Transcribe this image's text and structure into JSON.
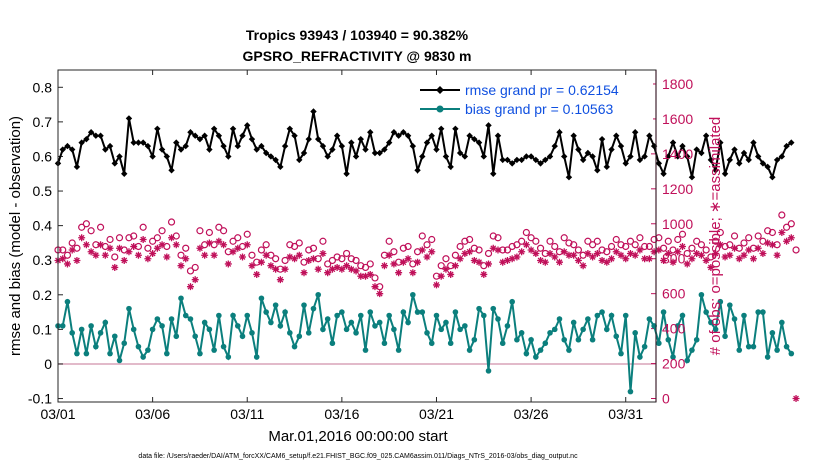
{
  "chart_data": {
    "type": "line",
    "title_line1": "Tropics 93943 / 103940 = 90.382%",
    "title_line2": "GPSRO_REFRACTIVITY @ 9830 m",
    "xlabel": "Mar.01,2016 00:00:00 start",
    "ylabel": "rmse and bias (model - observation)",
    "y2label": "# of obs: o=possible; ∗=assimilated",
    "footnote": "data file: /Users/raeder/DAI/ATM_forcXX/CAM6_setup/f.e21.FHIST_BGC.f09_025.CAM6assim.011/Diags_NTrS_2016-03/obs_diag_output.nc",
    "xlim": [
      0,
      31.6
    ],
    "ylim": [
      -0.11,
      0.85
    ],
    "y2lim": [
      -20,
      1880
    ],
    "xticks": [
      0,
      5,
      10,
      15,
      20,
      25,
      30
    ],
    "xtick_labels": [
      "03/01",
      "03/06",
      "03/11",
      "03/16",
      "03/21",
      "03/26",
      "03/31"
    ],
    "yticks": [
      -0.1,
      0,
      0.1,
      0.2,
      0.3,
      0.4,
      0.5,
      0.6,
      0.7,
      0.8
    ],
    "ytick_labels": [
      "-0.1",
      "0",
      "0.1",
      "0.2",
      "0.3",
      "0.4",
      "0.5",
      "0.6",
      "0.7",
      "0.8"
    ],
    "y2ticks": [
      0,
      200,
      400,
      600,
      800,
      1000,
      1200,
      1400,
      1600,
      1800
    ],
    "y2tick_labels": [
      "0",
      "200",
      "400",
      "600",
      "800",
      "1000",
      "1200",
      "1400",
      "1600",
      "1800"
    ],
    "x_step_days": 0.25,
    "series": [
      {
        "name": "rmse",
        "legend": "rmse grand pr = 0.62154",
        "color": "#000000",
        "marker": "diamond",
        "values": [
          0.58,
          0.62,
          0.63,
          0.62,
          0.57,
          0.64,
          0.65,
          0.67,
          0.66,
          0.66,
          0.62,
          0.63,
          0.58,
          0.6,
          0.55,
          0.71,
          0.64,
          0.64,
          0.64,
          0.63,
          0.6,
          0.68,
          0.62,
          0.6,
          0.56,
          0.64,
          0.62,
          0.63,
          0.67,
          0.66,
          0.65,
          0.66,
          0.62,
          0.68,
          0.66,
          0.63,
          0.6,
          0.68,
          0.63,
          0.66,
          0.69,
          0.65,
          0.62,
          0.63,
          0.61,
          0.6,
          0.59,
          0.57,
          0.63,
          0.68,
          0.66,
          0.59,
          0.61,
          0.65,
          0.73,
          0.65,
          0.63,
          0.6,
          0.62,
          0.66,
          0.63,
          0.55,
          0.64,
          0.6,
          0.65,
          0.62,
          0.67,
          0.61,
          0.61,
          0.62,
          0.64,
          0.67,
          0.66,
          0.67,
          0.66,
          0.63,
          0.56,
          0.6,
          0.64,
          0.66,
          0.62,
          0.68,
          0.6,
          0.57,
          0.68,
          0.61,
          0.6,
          0.66,
          0.65,
          0.64,
          0.6,
          0.69,
          0.55,
          0.66,
          0.59,
          0.59,
          0.58,
          0.59,
          0.59,
          0.6,
          0.6,
          0.59,
          0.58,
          0.59,
          0.6,
          0.63,
          0.67,
          0.6,
          0.54,
          0.66,
          0.62,
          0.59,
          0.61,
          0.6,
          0.56,
          0.65,
          0.57,
          0.62,
          0.66,
          0.63,
          0.58,
          0.6,
          0.67,
          0.59,
          0.6,
          0.66,
          0.63,
          0.58,
          0.55,
          0.6,
          0.64,
          0.6,
          0.63,
          0.6,
          0.54,
          0.62,
          0.61,
          0.66,
          0.59,
          0.56,
          0.64,
          0.55,
          0.59,
          0.62,
          0.58,
          0.61,
          0.59,
          0.64,
          0.6,
          0.58,
          0.57,
          0.54,
          0.59,
          0.6,
          0.63,
          0.64
        ]
      },
      {
        "name": "bias",
        "legend": "bias grand pr = 0.10563",
        "color": "#0b7f7d",
        "marker": "circle",
        "values": [
          0.11,
          0.11,
          0.18,
          0.09,
          0.03,
          0.1,
          0.03,
          0.11,
          0.05,
          0.09,
          0.12,
          0.03,
          0.08,
          0.01,
          0.06,
          0.16,
          0.1,
          0.05,
          0.02,
          0.04,
          0.1,
          0.13,
          0.11,
          0.03,
          0.13,
          0.08,
          0.19,
          0.14,
          0.13,
          0.08,
          0.03,
          0.12,
          0.1,
          0.04,
          0.14,
          0.05,
          0.02,
          0.14,
          0.11,
          0.08,
          0.14,
          0.09,
          0.02,
          0.19,
          0.15,
          0.12,
          0.17,
          0.11,
          0.15,
          0.09,
          0.05,
          0.08,
          0.17,
          0.09,
          0.16,
          0.2,
          0.1,
          0.13,
          0.06,
          0.14,
          0.15,
          0.1,
          0.12,
          0.09,
          0.14,
          0.04,
          0.15,
          0.11,
          0.12,
          0.06,
          0.14,
          0.1,
          0.04,
          0.15,
          0.12,
          0.2,
          0.15,
          0.15,
          0.09,
          0.06,
          0.14,
          0.1,
          0.12,
          0.06,
          0.15,
          0.1,
          0.11,
          0.04,
          0.07,
          0.16,
          0.14,
          -0.02,
          0.16,
          0.13,
          0.06,
          0.11,
          0.18,
          0.07,
          0.09,
          0.03,
          0.07,
          0.02,
          0.04,
          0.06,
          0.09,
          0.1,
          0.13,
          0.07,
          0.04,
          0.12,
          0.07,
          0.1,
          0.13,
          0.07,
          0.14,
          0.15,
          0.1,
          0.14,
          0.08,
          0.03,
          0.14,
          -0.08,
          0.09,
          0.02,
          0.05,
          0.13,
          0.11,
          0.06,
          0.15,
          0.07,
          0.02,
          0.11,
          0.14,
          0.01,
          0.04,
          0.07,
          0.2,
          0.15,
          0.12,
          0.1,
          0.18,
          0.08,
          0.17,
          0.13,
          0.04,
          0.14,
          0.05,
          0.05,
          0.15,
          0.15,
          0.02,
          0.09,
          0.04,
          0.12,
          0.05,
          0.03
        ]
      },
      {
        "name": "possible",
        "color": "#c0105a",
        "marker": "open-circle",
        "values": [
          850,
          850,
          820,
          890,
          860,
          980,
          1000,
          960,
          880,
          980,
          870,
          910,
          810,
          920,
          850,
          920,
          930,
          870,
          980,
          860,
          900,
          920,
          960,
          870,
          1010,
          930,
          820,
          860,
          730,
          750,
          960,
          880,
          950,
          880,
          980,
          960,
          840,
          900,
          920,
          870,
          940,
          820,
          780,
          850,
          880,
          820,
          800,
          740,
          790,
          880,
          870,
          890,
          780,
          850,
          860,
          800,
          900,
          770,
          790,
          810,
          800,
          830,
          800,
          790,
          760,
          750,
          770,
          690,
          640,
          820,
          900,
          840,
          780,
          860,
          870,
          770,
          840,
          930,
          880,
          910,
          700,
          760,
          800,
          760,
          820,
          870,
          900,
          910,
          860,
          850,
          760,
          830,
          930,
          920,
          850,
          850,
          870,
          880,
          900,
          950,
          920,
          900,
          860,
          830,
          900,
          870,
          840,
          920,
          890,
          880,
          850,
          820,
          900,
          880,
          900,
          850,
          840,
          870,
          910,
          880,
          870,
          900,
          880,
          920,
          870,
          870,
          910,
          920,
          860,
          900,
          850,
          910,
          940,
          830,
          860,
          900,
          880,
          850,
          810,
          900,
          950,
          870,
          880,
          930,
          860,
          890,
          920,
          860,
          930,
          900,
          960,
          950,
          880,
          1050,
          980,
          1000,
          850
        ]
      },
      {
        "name": "assimilated",
        "color": "#c0105a",
        "marker": "asterisk",
        "values": [
          790,
          800,
          770,
          850,
          790,
          920,
          880,
          840,
          820,
          880,
          820,
          860,
          750,
          860,
          790,
          840,
          870,
          820,
          910,
          800,
          830,
          860,
          880,
          810,
          920,
          880,
          760,
          800,
          640,
          680,
          860,
          820,
          890,
          820,
          900,
          880,
          770,
          840,
          860,
          810,
          880,
          760,
          710,
          780,
          820,
          760,
          740,
          680,
          740,
          810,
          800,
          820,
          720,
          790,
          800,
          740,
          830,
          720,
          740,
          750,
          740,
          760,
          740,
          730,
          700,
          700,
          710,
          640,
          600,
          760,
          820,
          770,
          720,
          780,
          800,
          720,
          780,
          850,
          810,
          840,
          650,
          700,
          740,
          710,
          760,
          800,
          830,
          840,
          790,
          780,
          710,
          770,
          860,
          850,
          780,
          790,
          800,
          810,
          840,
          880,
          850,
          830,
          790,
          780,
          830,
          810,
          780,
          840,
          820,
          820,
          790,
          760,
          830,
          810,
          830,
          790,
          780,
          800,
          840,
          820,
          800,
          830,
          820,
          850,
          800,
          800,
          840,
          850,
          790,
          830,
          780,
          840,
          870,
          770,
          800,
          830,
          820,
          790,
          750,
          830,
          880,
          810,
          820,
          860,
          800,
          820,
          850,
          800,
          860,
          830,
          890,
          880,
          820,
          950,
          900,
          920,
          0
        ]
      }
    ]
  }
}
